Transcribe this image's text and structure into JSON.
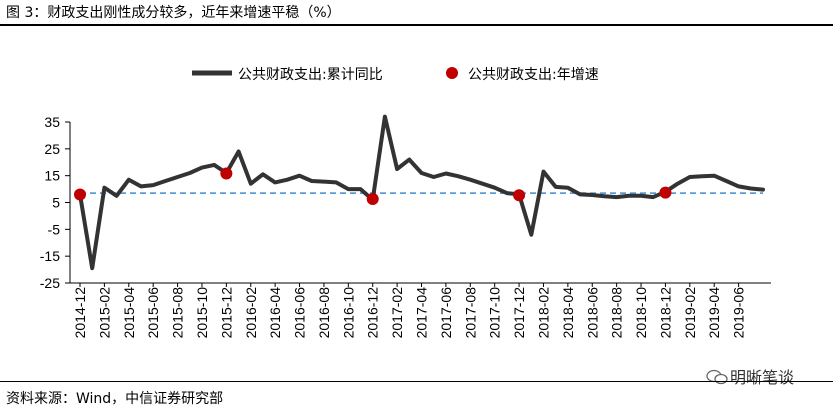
{
  "title": "图 3：财政支出刚性成分较多，近年来增速平稳（%）",
  "source": "资料来源：Wind，中信证券研究部",
  "watermark": "明晰笔谈",
  "colors": {
    "line": "#333333",
    "dots": "#c00000",
    "dash": "#5b9bd5"
  },
  "chart_data": {
    "type": "line",
    "legend_position": "top",
    "grid": false,
    "ylim": [
      -25,
      35
    ],
    "yticks": [
      35,
      25,
      15,
      5,
      -5,
      -15,
      -25
    ],
    "x": [
      "2014-12",
      "2015-01",
      "2015-02",
      "2015-03",
      "2015-04",
      "2015-05",
      "2015-06",
      "2015-07",
      "2015-08",
      "2015-09",
      "2015-10",
      "2015-11",
      "2015-12",
      "2016-01",
      "2016-02",
      "2016-03",
      "2016-04",
      "2016-05",
      "2016-06",
      "2016-07",
      "2016-08",
      "2016-09",
      "2016-10",
      "2016-11",
      "2016-12",
      "2017-01",
      "2017-02",
      "2017-03",
      "2017-04",
      "2017-05",
      "2017-06",
      "2017-07",
      "2017-08",
      "2017-09",
      "2017-10",
      "2017-11",
      "2017-12",
      "2018-01",
      "2018-02",
      "2018-03",
      "2018-04",
      "2018-05",
      "2018-06",
      "2018-07",
      "2018-08",
      "2018-09",
      "2018-10",
      "2018-11",
      "2018-12",
      "2019-01",
      "2019-02",
      "2019-03",
      "2019-04",
      "2019-05",
      "2019-06",
      "2019-07",
      "2019-08"
    ],
    "xtick_labels": [
      "2014-12",
      "2015-02",
      "2015-04",
      "2015-06",
      "2015-08",
      "2015-10",
      "2015-12",
      "2016-02",
      "2016-04",
      "2016-06",
      "2016-08",
      "2016-10",
      "2016-12",
      "2017-02",
      "2017-04",
      "2017-06",
      "2017-08",
      "2017-10",
      "2017-12",
      "2018-02",
      "2018-04",
      "2018-06",
      "2018-08",
      "2018-10",
      "2018-12",
      "2019-02",
      "2019-04",
      "2019-06"
    ],
    "series": [
      {
        "name": "公共财政支出:累计同比",
        "kind": "line",
        "values": [
          8,
          -19.5,
          10.5,
          7.5,
          13.5,
          11,
          11.5,
          13,
          14.5,
          16,
          18,
          19,
          16,
          24,
          12,
          15.5,
          12.5,
          13.5,
          15,
          13,
          12.8,
          12.5,
          10,
          10,
          6,
          37,
          17.5,
          21,
          16,
          14.5,
          15.8,
          14.8,
          13.5,
          12,
          10.5,
          8.5,
          8,
          -7,
          16.5,
          10.8,
          10.5,
          8,
          7.8,
          7.3,
          7,
          7.5,
          7.5,
          7,
          9,
          12,
          14.5,
          14.8,
          15,
          13,
          11,
          10.2,
          9.8
        ]
      },
      {
        "name": "公共财政支出:年增速",
        "kind": "marker",
        "points": [
          {
            "x": "2014-12",
            "y": 8
          },
          {
            "x": "2015-12",
            "y": 15.8
          },
          {
            "x": "2016-12",
            "y": 6.3
          },
          {
            "x": "2017-12",
            "y": 7.7
          },
          {
            "x": "2018-12",
            "y": 8.7
          }
        ]
      }
    ],
    "reference_line": {
      "y": 8.5,
      "style": "dashed"
    }
  }
}
